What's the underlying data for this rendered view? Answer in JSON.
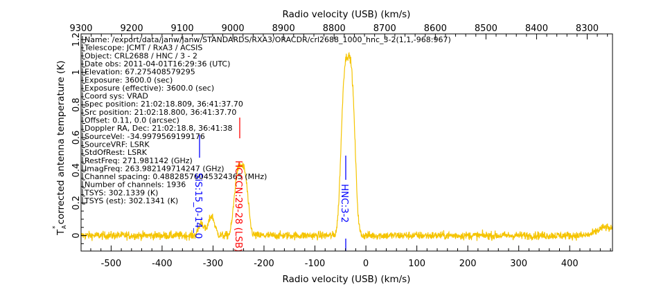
{
  "chart_data": {
    "type": "line",
    "xlabel_bottom": "Radio velocity (USB) (km/s)",
    "xlabel_top": "Radio velocity (USB) (km/s)",
    "ylabel": "corrected antenna temperature (K)",
    "ylabel_symbol": "T",
    "ylabel_sub": "A",
    "ylabel_sup": "*",
    "xlim": [
      -559,
      484
    ],
    "ylim": [
      -0.095,
      1.235
    ],
    "xlim_top": [
      9300,
      8250
    ],
    "xticks": [
      -500,
      -400,
      -300,
      -200,
      -100,
      0,
      100,
      200,
      300,
      400
    ],
    "xtick_labels": [
      "-500",
      "-400",
      "-300",
      "-200",
      "-100",
      "0",
      "100",
      "200",
      "300",
      "400"
    ],
    "xticks_top": [
      9300,
      9200,
      9100,
      9000,
      8900,
      8800,
      8700,
      8600,
      8500,
      8400,
      8300
    ],
    "xtick_labels_top": [
      "9300",
      "9200",
      "9100",
      "9000",
      "8900",
      "8800",
      "8700",
      "8600",
      "8500",
      "8400",
      "8300"
    ],
    "yticks": [
      0,
      0.2,
      0.4,
      0.6,
      0.8,
      1,
      1.2
    ],
    "ytick_labels": [
      "0",
      "0.2",
      "0.4",
      "0.6",
      "0.8",
      "1",
      "1.2"
    ],
    "series": [
      {
        "name": "spectrum",
        "color": "#f5c400",
        "noise_rms_K": 0.018,
        "channel_step_kms": 0.54,
        "components": [
          {
            "center_kms": -35,
            "peak_K": 1.1,
            "halfwidth_kms": 14,
            "shape": "flat-top"
          },
          {
            "center_kms": -245,
            "peak_K": 0.43,
            "halfwidth_kms": 14,
            "shape": "flat-top"
          },
          {
            "center_kms": -323,
            "peak_K": 0.08,
            "halfwidth_kms": 5,
            "shape": "gauss"
          },
          {
            "center_kms": -303,
            "peak_K": 0.12,
            "halfwidth_kms": 6,
            "shape": "gauss"
          },
          {
            "center_kms": 470,
            "peak_K": 0.05,
            "halfwidth_kms": 15,
            "shape": "gauss"
          }
        ]
      }
    ],
    "line_ids": [
      {
        "label": "SiS:15_0-14_0",
        "velocity_kms": -318,
        "color": "#0000ff"
      },
      {
        "label": "HCCCN:29-28 (LSB)",
        "velocity_kms": -240,
        "color": "#ff0000"
      },
      {
        "label": "HNC:3-2",
        "velocity_kms": -35,
        "color": "#0000ff"
      }
    ]
  },
  "info": [
    "Name: /export/data/janw/janw/STANDARDS/RXA3/ORACDR/crl2688_1000_hnc_3-2(1,1,-968:967)",
    "Telescope: JCMT / RxA3 / ACSIS",
    "Object: CRL2688 / HNC / 3  - 2",
    "Date obs: 2011-04-01T16:29:36 (UTC)",
    "Elevation: 67.275408579295",
    "Exposure: 3600.0 (sec)",
    "Exposure (effective): 3600.0 (sec)",
    "Coord sys: VRAD",
    "Spec position: 21:02:18.809, 36:41:37.70",
    "Src position: 21:02:18.800, 36:41:37.70",
    "Offset: 0.11, 0.0 (arcsec)",
    "Doppler RA, Dec: 21:02:18.8, 36:41:38",
    "SourceVel: -34.9979569199176",
    "SourceVRF: LSRK",
    "StdOfRest: LSRK",
    "RestFreq: 271.981142 (GHz)",
    "ImagFreq: 263.982149714247 (GHz)",
    "Channel spacing: 0.48828576045324365 (MHz)",
    "Number of channels: 1936",
    "TSYS: 302.1339 (K)",
    "TSYS (est): 302.1341 (K)"
  ]
}
